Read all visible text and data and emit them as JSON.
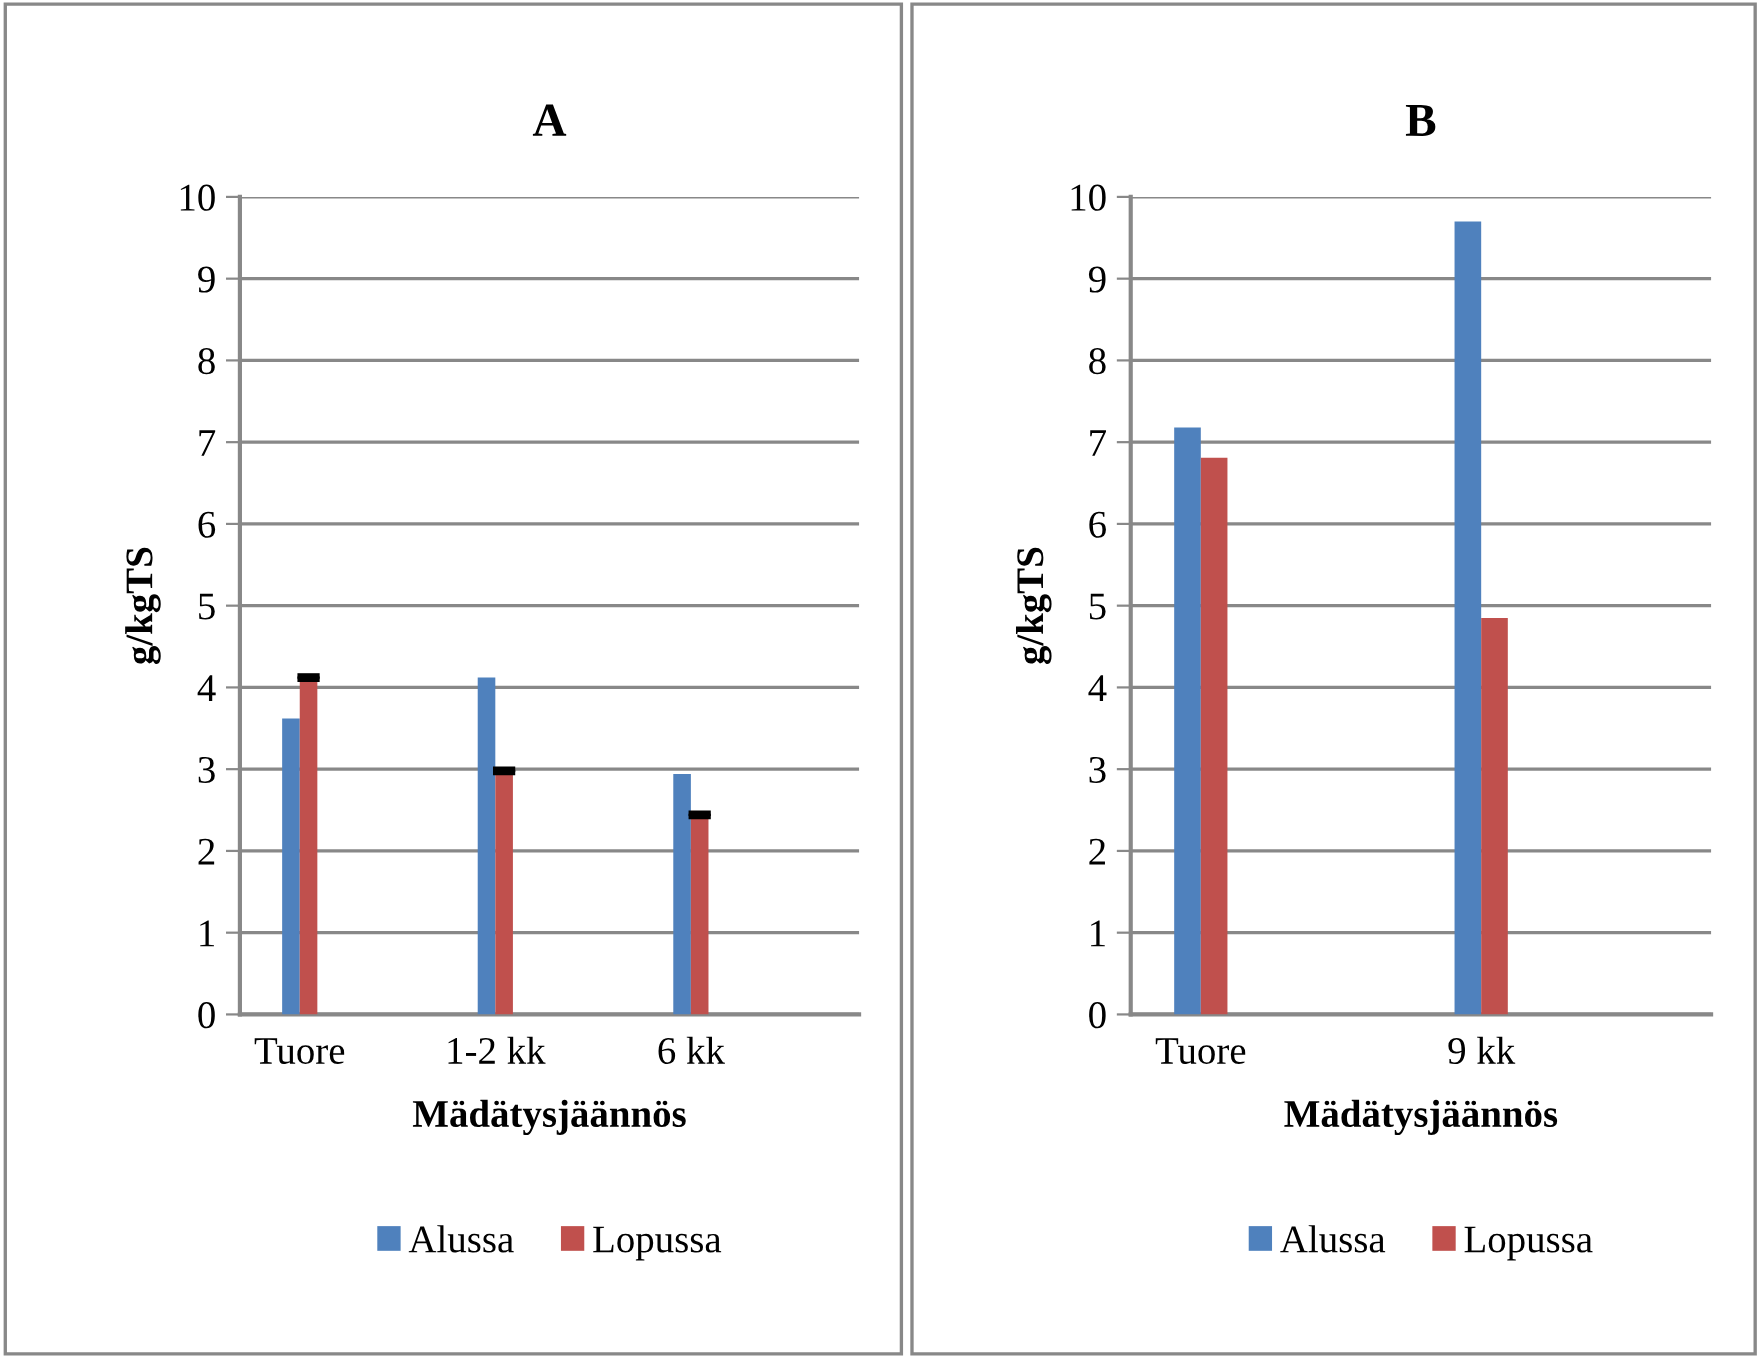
{
  "chart_data": [
    {
      "type": "bar",
      "title": "A",
      "xlabel": "Mädätysjäännös",
      "ylabel": "g/kgTS",
      "categories": [
        "Tuore",
        "1-2 kk",
        "6 kk"
      ],
      "series": [
        {
          "name": "Alussa",
          "color": "#4f81bd",
          "values": [
            3.62,
            4.12,
            2.94
          ]
        },
        {
          "name": "Lopussa",
          "color": "#c0504d",
          "values": [
            4.12,
            2.98,
            2.44
          ],
          "errors": [
            0.02,
            0.02,
            0.02
          ]
        }
      ],
      "ylim": [
        0,
        10
      ],
      "yticks": [
        0,
        1,
        2,
        3,
        4,
        5,
        6,
        7,
        8,
        9,
        10
      ],
      "grid": "y",
      "legend": "bottom"
    },
    {
      "type": "bar",
      "title": "B",
      "xlabel": "Mädätysjäännös",
      "ylabel": "g/kgTS",
      "categories": [
        "Tuore",
        "9 kk"
      ],
      "series": [
        {
          "name": "Alussa",
          "color": "#4f81bd",
          "values": [
            7.18,
            9.7
          ]
        },
        {
          "name": "Lopussa",
          "color": "#c0504d",
          "values": [
            6.81,
            4.85
          ]
        }
      ],
      "ylim": [
        0,
        10
      ],
      "yticks": [
        0,
        1,
        2,
        3,
        4,
        5,
        6,
        7,
        8,
        9,
        10
      ],
      "grid": "y",
      "legend": "bottom"
    }
  ]
}
